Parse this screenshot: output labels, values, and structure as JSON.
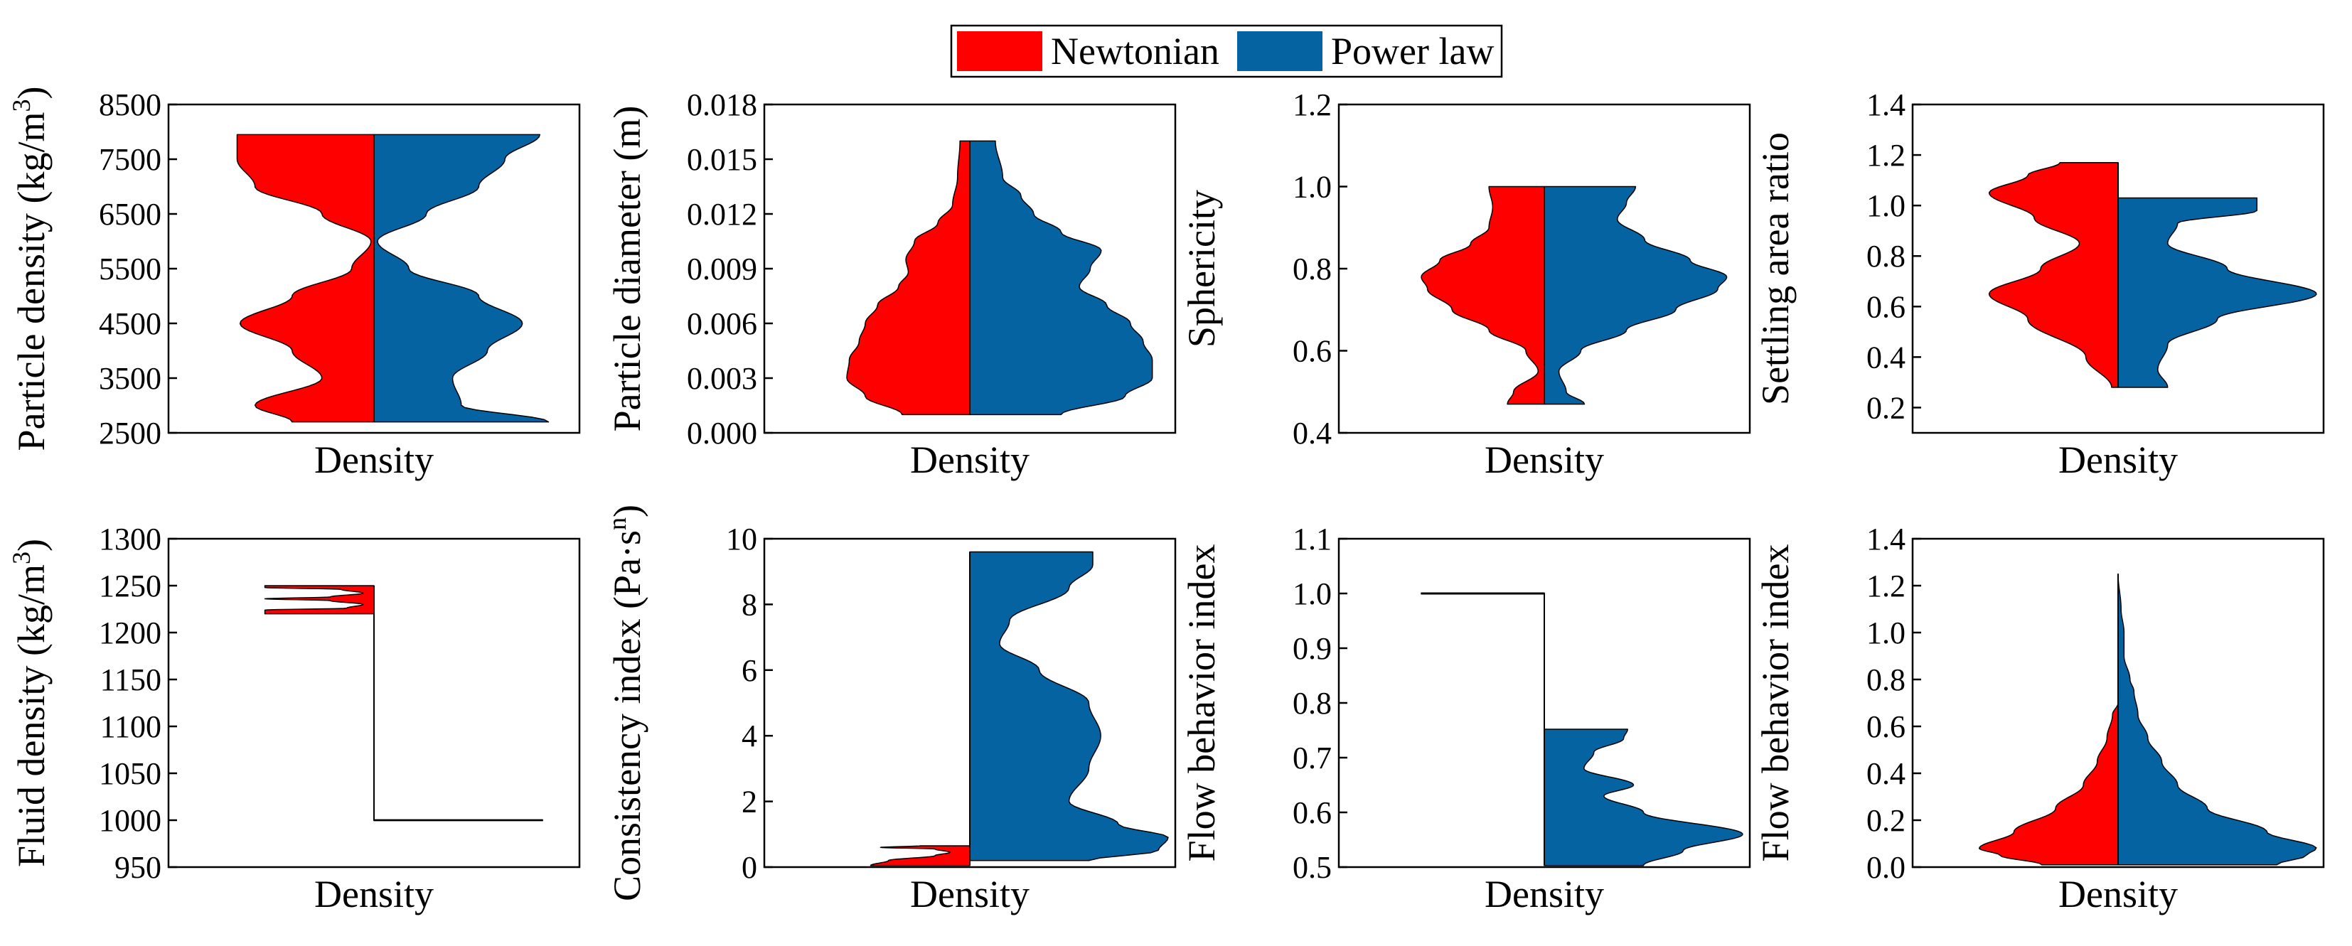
{
  "legend": {
    "entries": [
      {
        "label": "Newtonian",
        "color": "#ff0000"
      },
      {
        "label": "Power law",
        "color": "#0563a2"
      }
    ]
  },
  "chart_data": [
    {
      "type": "violin",
      "title": "",
      "xlabel": "Density",
      "ylabel": "Particle density (kg/m3)",
      "ylabel_main": "Particle density (kg/m",
      "ylabel_sup": "3",
      "ylabel_tail": ")",
      "ylim": [
        2500,
        8500
      ],
      "yticks": [
        2500,
        3500,
        4500,
        5500,
        6500,
        7500,
        8500
      ],
      "yticklabels": [
        "2500",
        "3500",
        "4500",
        "5500",
        "6500",
        "7500",
        "8500"
      ],
      "series": [
        {
          "name": "Newtonian",
          "side": "left",
          "scale": 0.75,
          "profile": [
            [
              2700,
              0.55
            ],
            [
              3000,
              0.8
            ],
            [
              3500,
              0.35
            ],
            [
              4000,
              0.55
            ],
            [
              4500,
              0.9
            ],
            [
              5000,
              0.55
            ],
            [
              5500,
              0.15
            ],
            [
              6000,
              0.02
            ],
            [
              6500,
              0.35
            ],
            [
              7000,
              0.8
            ],
            [
              7500,
              0.92
            ],
            [
              7950,
              0.92
            ]
          ]
        },
        {
          "name": "Power law",
          "side": "right",
          "scale": 0.88,
          "profile": [
            [
              2700,
              1.0
            ],
            [
              3000,
              0.5
            ],
            [
              3500,
              0.45
            ],
            [
              4000,
              0.65
            ],
            [
              4500,
              0.85
            ],
            [
              5000,
              0.6
            ],
            [
              5500,
              0.2
            ],
            [
              6000,
              0.02
            ],
            [
              6500,
              0.3
            ],
            [
              7000,
              0.6
            ],
            [
              7500,
              0.75
            ],
            [
              7950,
              0.95
            ]
          ]
        }
      ]
    },
    {
      "type": "violin",
      "title": "",
      "xlabel": "Density",
      "ylabel": "Particle diameter (m)",
      "ylabel_main": "Particle diameter (m)",
      "ylabel_sup": "",
      "ylabel_tail": "",
      "ylim": [
        0,
        0.018
      ],
      "yticks": [
        0,
        0.003,
        0.006,
        0.009,
        0.012,
        0.015,
        0.018
      ],
      "yticklabels": [
        "0.000",
        "0.003",
        "0.006",
        "0.009",
        "0.012",
        "0.015",
        "0.018"
      ],
      "series": [
        {
          "name": "Newtonian",
          "side": "left",
          "scale": 0.62,
          "profile": [
            [
              0.001,
              0.55
            ],
            [
              0.002,
              0.85
            ],
            [
              0.003,
              1.0
            ],
            [
              0.004,
              0.98
            ],
            [
              0.005,
              0.9
            ],
            [
              0.006,
              0.85
            ],
            [
              0.007,
              0.75
            ],
            [
              0.008,
              0.58
            ],
            [
              0.0088,
              0.5
            ],
            [
              0.0095,
              0.52
            ],
            [
              0.0105,
              0.45
            ],
            [
              0.0115,
              0.26
            ],
            [
              0.0125,
              0.14
            ],
            [
              0.014,
              0.1
            ],
            [
              0.016,
              0.08
            ]
          ]
        },
        {
          "name": "Power law",
          "side": "right",
          "scale": 0.92,
          "profile": [
            [
              0.001,
              0.5
            ],
            [
              0.002,
              0.85
            ],
            [
              0.003,
              1.0
            ],
            [
              0.004,
              1.0
            ],
            [
              0.005,
              0.95
            ],
            [
              0.006,
              0.88
            ],
            [
              0.007,
              0.75
            ],
            [
              0.008,
              0.6
            ],
            [
              0.009,
              0.66
            ],
            [
              0.01,
              0.72
            ],
            [
              0.011,
              0.5
            ],
            [
              0.012,
              0.35
            ],
            [
              0.013,
              0.28
            ],
            [
              0.014,
              0.18
            ],
            [
              0.016,
              0.14
            ]
          ]
        }
      ]
    },
    {
      "type": "violin",
      "title": "",
      "xlabel": "Density",
      "ylabel": "Sphericity",
      "ylabel_main": "Sphericity",
      "ylabel_sup": "",
      "ylabel_tail": "",
      "ylim": [
        0.4,
        1.2
      ],
      "yticks": [
        0.4,
        0.6,
        0.8,
        1.0,
        1.2
      ],
      "yticklabels": [
        "0.4",
        "0.6",
        "0.8",
        "1.0",
        "1.2"
      ],
      "series": [
        {
          "name": "Newtonian",
          "side": "left",
          "scale": 0.62,
          "profile": [
            [
              0.47,
              0.3
            ],
            [
              0.5,
              0.25
            ],
            [
              0.55,
              0.05
            ],
            [
              0.6,
              0.15
            ],
            [
              0.65,
              0.45
            ],
            [
              0.7,
              0.75
            ],
            [
              0.75,
              0.95
            ],
            [
              0.78,
              1.0
            ],
            [
              0.82,
              0.85
            ],
            [
              0.86,
              0.6
            ],
            [
              0.9,
              0.45
            ],
            [
              0.95,
              0.42
            ],
            [
              1.0,
              0.45
            ]
          ]
        },
        {
          "name": "Power law",
          "side": "right",
          "scale": 0.92,
          "profile": [
            [
              0.47,
              0.22
            ],
            [
              0.5,
              0.12
            ],
            [
              0.55,
              0.08
            ],
            [
              0.6,
              0.2
            ],
            [
              0.65,
              0.45
            ],
            [
              0.7,
              0.72
            ],
            [
              0.75,
              0.95
            ],
            [
              0.78,
              1.0
            ],
            [
              0.82,
              0.8
            ],
            [
              0.87,
              0.55
            ],
            [
              0.92,
              0.4
            ],
            [
              0.96,
              0.45
            ],
            [
              1.0,
              0.5
            ]
          ]
        }
      ]
    },
    {
      "type": "violin",
      "title": "",
      "xlabel": "Density",
      "ylabel": "Settling area ratio",
      "ylabel_main": "Settling area ratio",
      "ylabel_sup": "",
      "ylabel_tail": "",
      "ylim": [
        0.1,
        1.4
      ],
      "yticks": [
        0.2,
        0.4,
        0.6,
        0.8,
        1.0,
        1.2,
        1.4
      ],
      "yticklabels": [
        "0.2",
        "0.4",
        "0.6",
        "0.8",
        "1.0",
        "1.2",
        "1.4"
      ],
      "series": [
        {
          "name": "Newtonian",
          "side": "left",
          "scale": 0.65,
          "profile": [
            [
              0.28,
              0.05
            ],
            [
              0.4,
              0.25
            ],
            [
              0.55,
              0.7
            ],
            [
              0.65,
              1.0
            ],
            [
              0.75,
              0.6
            ],
            [
              0.85,
              0.3
            ],
            [
              0.95,
              0.65
            ],
            [
              1.05,
              1.0
            ],
            [
              1.12,
              0.7
            ],
            [
              1.17,
              0.45
            ]
          ]
        },
        {
          "name": "Power law",
          "side": "right",
          "scale": 1.0,
          "profile": [
            [
              0.28,
              0.25
            ],
            [
              0.35,
              0.2
            ],
            [
              0.45,
              0.25
            ],
            [
              0.55,
              0.5
            ],
            [
              0.65,
              1.0
            ],
            [
              0.75,
              0.55
            ],
            [
              0.85,
              0.25
            ],
            [
              0.93,
              0.3
            ],
            [
              0.98,
              0.7
            ],
            [
              1.03,
              0.7
            ]
          ]
        }
      ]
    },
    {
      "type": "violin",
      "title": "",
      "xlabel": "Density",
      "ylabel": "Fluid density (kg/m3)",
      "ylabel_main": "Fluid density (kg/m",
      "ylabel_sup": "3",
      "ylabel_tail": ")",
      "ylim": [
        950,
        1300
      ],
      "yticks": [
        950,
        1000,
        1050,
        1100,
        1150,
        1200,
        1250,
        1300
      ],
      "yticklabels": [
        "950",
        "1000",
        "1050",
        "1100",
        "1150",
        "1200",
        "1250",
        "1300"
      ],
      "series": [
        {
          "name": "Newtonian",
          "side": "left",
          "scale": 0.55,
          "profile": [
            [
              1220,
              1.0
            ],
            [
              1224,
              1.0
            ],
            [
              1226,
              0.25
            ],
            [
              1230,
              0.1
            ],
            [
              1234,
              0.4
            ],
            [
              1236,
              1.0
            ],
            [
              1238,
              0.4
            ],
            [
              1242,
              0.1
            ],
            [
              1246,
              0.3
            ],
            [
              1248,
              1.0
            ],
            [
              1250,
              1.0
            ]
          ]
        },
        {
          "name": "Power law",
          "side": "right",
          "scale": 0.85,
          "profile": [
            [
              999.5,
              1.0
            ],
            [
              1000.5,
              1.0
            ]
          ]
        }
      ]
    },
    {
      "type": "violin",
      "title": "",
      "xlabel": "Density",
      "ylabel": "Consistency index (Pa·sn)",
      "ylabel_main": "Consistency index (Pa·s",
      "ylabel_sup": "n",
      "ylabel_tail": ")",
      "ylim": [
        0,
        10
      ],
      "yticks": [
        0,
        2,
        4,
        6,
        8,
        10
      ],
      "yticklabels": [
        "0",
        "2",
        "4",
        "6",
        "8",
        "10"
      ],
      "series": [
        {
          "name": "Newtonian",
          "side": "left",
          "scale": 0.5,
          "profile": [
            [
              0.05,
              1.0
            ],
            [
              0.2,
              0.82
            ],
            [
              0.35,
              0.35
            ],
            [
              0.45,
              0.2
            ],
            [
              0.55,
              0.35
            ],
            [
              0.6,
              0.9
            ],
            [
              0.65,
              0.5
            ]
          ]
        },
        {
          "name": "Power law",
          "side": "right",
          "scale": 1.0,
          "profile": [
            [
              0.2,
              0.6
            ],
            [
              0.5,
              0.95
            ],
            [
              0.9,
              1.0
            ],
            [
              1.3,
              0.75
            ],
            [
              2.0,
              0.5
            ],
            [
              3.0,
              0.6
            ],
            [
              4.0,
              0.66
            ],
            [
              5.0,
              0.6
            ],
            [
              6.0,
              0.35
            ],
            [
              6.8,
              0.15
            ],
            [
              7.5,
              0.2
            ],
            [
              8.5,
              0.5
            ],
            [
              9.2,
              0.62
            ],
            [
              9.6,
              0.62
            ]
          ]
        }
      ]
    },
    {
      "type": "violin",
      "title": "",
      "xlabel": "Density",
      "ylabel": "Flow behavior index",
      "ylabel_main": "Flow behavior index",
      "ylabel_sup": "",
      "ylabel_tail": "",
      "ylim": [
        0.5,
        1.1
      ],
      "yticks": [
        0.5,
        0.6,
        0.7,
        0.8,
        0.9,
        1.0,
        1.1
      ],
      "yticklabels": [
        "0.5",
        "0.6",
        "0.7",
        "0.8",
        "0.9",
        "1.0",
        "1.1"
      ],
      "series": [
        {
          "name": "Newtonian",
          "side": "left",
          "scale": 0.62,
          "profile": [
            [
              0.999,
              1.0
            ],
            [
              1.001,
              1.0
            ]
          ]
        },
        {
          "name": "Power law",
          "side": "right",
          "scale": 1.0,
          "profile": [
            [
              0.503,
              0.5
            ],
            [
              0.53,
              0.7
            ],
            [
              0.56,
              1.0
            ],
            [
              0.6,
              0.5
            ],
            [
              0.63,
              0.3
            ],
            [
              0.65,
              0.45
            ],
            [
              0.68,
              0.2
            ],
            [
              0.71,
              0.25
            ],
            [
              0.735,
              0.4
            ],
            [
              0.752,
              0.42
            ]
          ]
        }
      ]
    },
    {
      "type": "violin",
      "title": "",
      "xlabel": "Density",
      "ylabel": "Flow behavior index",
      "ylabel_main": "Flow behavior index",
      "ylabel_sup": "",
      "ylabel_tail": "",
      "ylim": [
        0,
        1.4
      ],
      "yticks": [
        0,
        0.2,
        0.4,
        0.6,
        0.8,
        1.0,
        1.2,
        1.4
      ],
      "yticklabels": [
        "0.0",
        "0.2",
        "0.4",
        "0.6",
        "0.8",
        "1.0",
        "1.2",
        "1.4"
      ],
      "series": [
        {
          "name": "Newtonian",
          "side": "left",
          "scale": 0.7,
          "profile": [
            [
              0.01,
              0.55
            ],
            [
              0.05,
              0.85
            ],
            [
              0.08,
              1.0
            ],
            [
              0.15,
              0.75
            ],
            [
              0.25,
              0.45
            ],
            [
              0.35,
              0.25
            ],
            [
              0.45,
              0.15
            ],
            [
              0.55,
              0.08
            ],
            [
              0.65,
              0.04
            ],
            [
              0.7,
              0.0
            ]
          ]
        },
        {
          "name": "Power law",
          "side": "right",
          "scale": 1.0,
          "profile": [
            [
              0.01,
              0.8
            ],
            [
              0.05,
              0.95
            ],
            [
              0.08,
              1.0
            ],
            [
              0.15,
              0.75
            ],
            [
              0.25,
              0.45
            ],
            [
              0.35,
              0.3
            ],
            [
              0.45,
              0.22
            ],
            [
              0.55,
              0.15
            ],
            [
              0.65,
              0.1
            ],
            [
              0.75,
              0.08
            ],
            [
              0.8,
              0.06
            ],
            [
              0.9,
              0.03
            ],
            [
              1.0,
              0.03
            ],
            [
              1.1,
              0.015
            ],
            [
              1.25,
              0.0
            ]
          ]
        }
      ]
    }
  ]
}
